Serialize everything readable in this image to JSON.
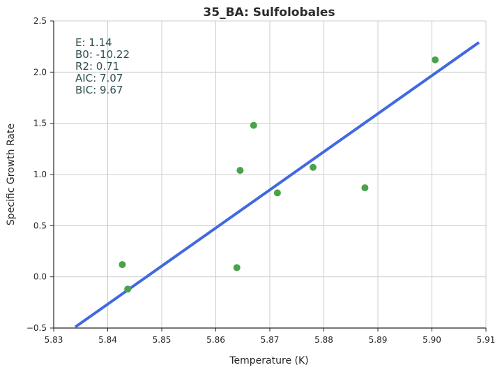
{
  "chart_data": {
    "type": "scatter",
    "title": "35_BA: Sulfolobales",
    "xlabel": "Temperature (K)",
    "ylabel": "Specific Growth Rate",
    "xlim": [
      5.83,
      5.91
    ],
    "ylim": [
      -0.5,
      2.5
    ],
    "x_ticks": [
      "5.83",
      "5.84",
      "5.85",
      "5.86",
      "5.87",
      "5.88",
      "5.89",
      "5.90",
      "5.91"
    ],
    "y_ticks": [
      "−0.5",
      "0.0",
      "0.5",
      "1.0",
      "1.5",
      "2.0",
      "2.5"
    ],
    "grid": true,
    "points": [
      {
        "x": 5.8427,
        "y": 0.12
      },
      {
        "x": 5.8437,
        "y": -0.12
      },
      {
        "x": 5.8639,
        "y": 0.09
      },
      {
        "x": 5.8645,
        "y": 1.04
      },
      {
        "x": 5.867,
        "y": 1.48
      },
      {
        "x": 5.8714,
        "y": 0.82
      },
      {
        "x": 5.878,
        "y": 1.07
      },
      {
        "x": 5.8876,
        "y": 0.87
      },
      {
        "x": 5.9006,
        "y": 2.12
      }
    ],
    "fit_line": {
      "x": [
        5.834,
        5.9087
      ],
      "y": [
        -0.49,
        2.29
      ]
    },
    "stats_lines": [
      "E:  1.14",
      "B0:  -10.22",
      "R2:  0.71",
      "AIC: 7.07",
      "BIC: 9.67"
    ],
    "colors": {
      "points": "#4aa34a",
      "fit_line": "#4169e1",
      "grid": "#cccccc",
      "stats_text": "#2f4f4f",
      "axis": "#262626"
    }
  }
}
